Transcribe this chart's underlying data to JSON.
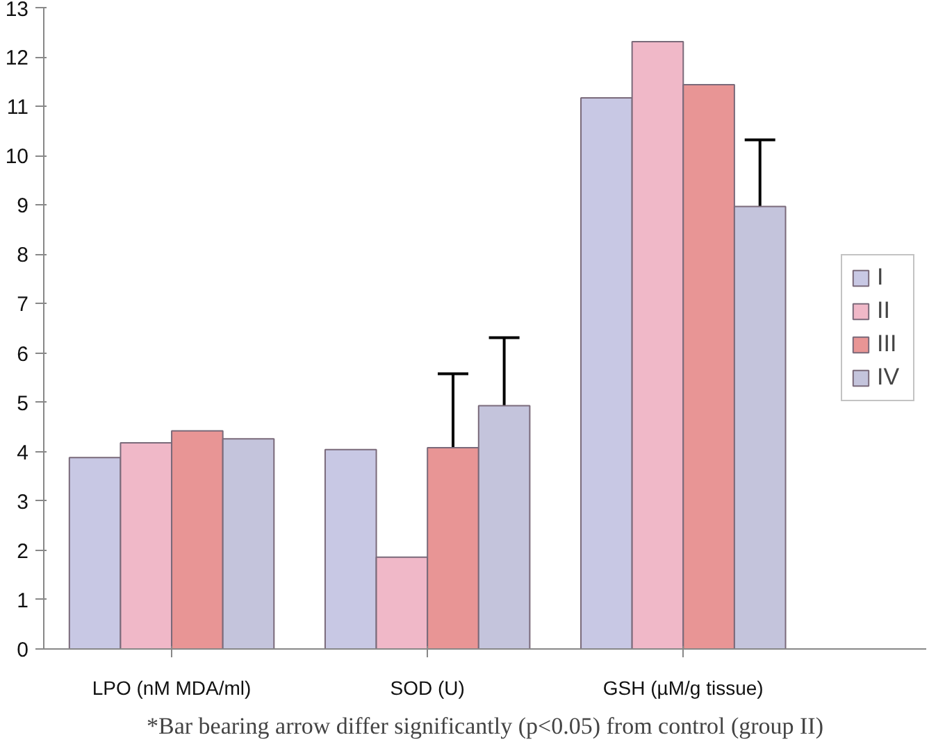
{
  "chart_data": {
    "type": "bar",
    "categories": [
      "LPO (nM MDA/ml)",
      "SOD (U)",
      "GSH (µM/g tissue)"
    ],
    "series": [
      {
        "name": "I",
        "color": "#c8c8e4",
        "values": [
          3.88,
          4.04,
          11.17
        ]
      },
      {
        "name": "II",
        "color": "#f0b8c8",
        "values": [
          4.18,
          1.86,
          12.31
        ]
      },
      {
        "name": "III",
        "color": "#e89595",
        "values": [
          4.42,
          4.08,
          11.44
        ],
        "errors": [
          null,
          [
            4.08,
            5.58
          ],
          null
        ]
      },
      {
        "name": "IV",
        "color": "#c4c4dc",
        "values": [
          4.26,
          4.93,
          8.97
        ],
        "errors": [
          null,
          [
            4.93,
            6.31
          ],
          [
            8.97,
            10.32
          ]
        ]
      }
    ],
    "ylim": [
      0,
      13
    ],
    "yticks": [
      0,
      1,
      2,
      3,
      4,
      5,
      6,
      7,
      8,
      9,
      10,
      11,
      12,
      13
    ],
    "grid": false,
    "legend": "right",
    "annotations": [
      "*Bar bearing arrow differ significantly (p<0.05) from control (group II)"
    ]
  }
}
